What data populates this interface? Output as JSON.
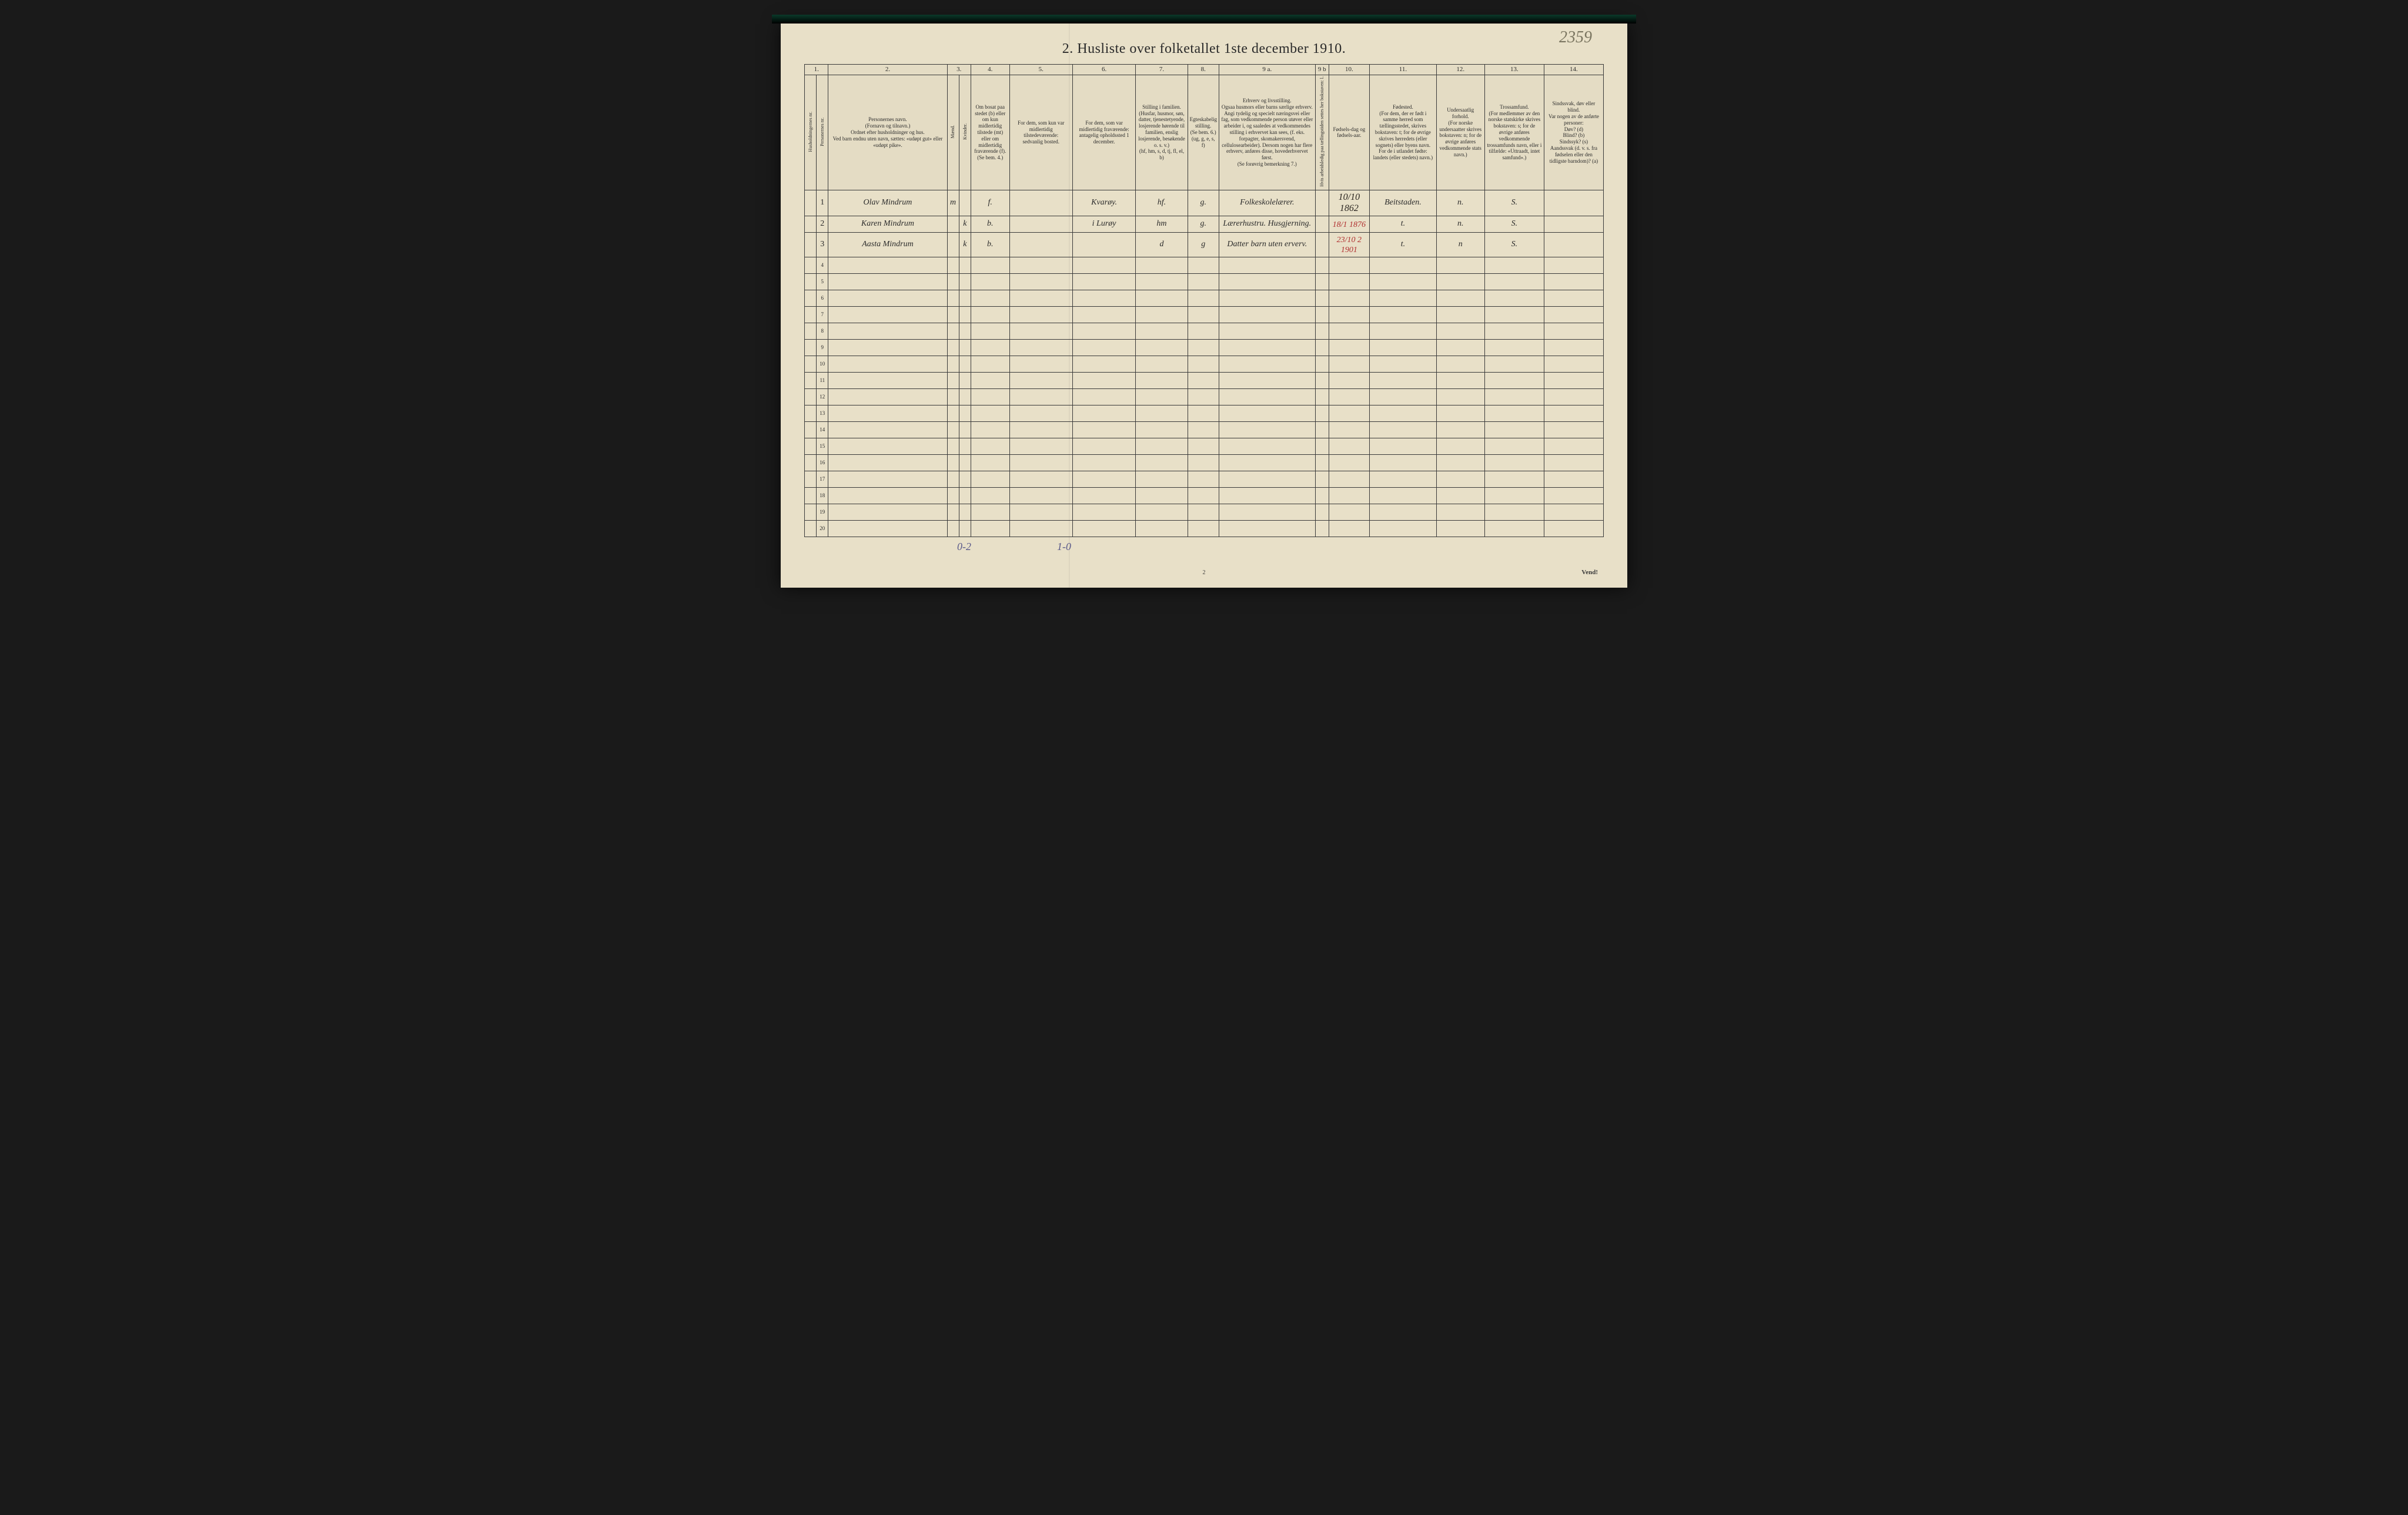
{
  "page_annotation": "2359",
  "title": "2.  Husliste over folketallet 1ste december 1910.",
  "columns": {
    "numbers": [
      "1.",
      "2.",
      "3.",
      "4.",
      "5.",
      "6.",
      "7.",
      "8.",
      "9 a.",
      "9 b",
      "10.",
      "11.",
      "12.",
      "13.",
      "14."
    ],
    "headers": {
      "c1a": "Husholdningernes nr.",
      "c1b": "Personernes nr.",
      "c2": "Personernes navn.\n(Fornavn og tilnavn.)\nOrdnet efter husholdninger og hus.\nVed barn endnu uten navn, sættes: «udøpt gut» eller «udøpt pike».",
      "c3_top": "Kjøn.",
      "c3a": "Mænd.",
      "c3b": "Kvinder.",
      "c3_foot": "m. | k.",
      "c4": "Om bosat paa stedet (b) eller om kun midlertidig tilstede (mt) eller om midlertidig fraværende (f). (Se bem. 4.)",
      "c5": "For dem, som kun var midlertidig tilstedeværende:\nsedvanlig bosted.",
      "c6": "For dem, som var midlertidig fraværende:\nantagelig opholdssted 1 december.",
      "c7": "Stilling i familien.\n(Husfar, husmor, søn, datter, tjenestetyende, losjerende hørende til familien, enslig losjerende, besøkende o. s. v.)\n(hf, hm, s, d, tj, fl, el, b)",
      "c8": "Egteskabelig stilling.\n(Se bem. 6.)\n(ug, g, e, s, f)",
      "c9a": "Erhverv og livsstilling.\nOgsaa husmors eller barns særlige erhverv. Angi tydelig og specielt næringsvei eller fag, som vedkommende person utøver eller arbeider i, og saaledes at vedkommendes stilling i erhvervet kan sees, (f. eks. forpagter, skomakersvend, cellulosearbeider). Dersom nogen har flere erhverv, anføres disse, hovederhvervet først.\n(Se forøvrig bemerkning 7.)",
      "c9b": "Hvis arbeidsledig paa tællingstiden settes her bokstaven: l.",
      "c10": "Fødsels-dag og fødsels-aar.",
      "c11": "Fødested.\n(For dem, der er født i samme herred som tællingsstedet, skrives bokstaven: t; for de øvrige skrives herredets (eller sognets) eller byens navn. For de i utlandet fødte: landets (eller stedets) navn.)",
      "c12": "Undersaatlig forhold.\n(For norske undersaatter skrives bokstaven: n; for de øvrige anføres vedkommende stats navn.)",
      "c13": "Trossamfund.\n(For medlemmer av den norske statskirke skrives bokstaven: s; for de øvrige anføres vedkommende trossamfunds navn, eller i tilfælde: «Uttraadt, intet samfund».)",
      "c14": "Sindssvak, døv eller blind.\nVar nogen av de anførte personer:\nDøv? (d)\nBlind? (b)\nSindssyk? (s)\nAandssvak (d. v. s. fra fødselen eller den tidligste barndom)? (a)"
    }
  },
  "rows": [
    {
      "num": "1",
      "name": "Olav Mindrum",
      "sex": "m",
      "resident": "f.",
      "c6": "Kvarøy.",
      "family": "hf.",
      "marital": "g.",
      "occupation": "Folkeskolelærer.",
      "birth": "10/10 1862",
      "birth_red": "",
      "birthplace": "Beitstaden.",
      "nationality": "n.",
      "faith": "S."
    },
    {
      "num": "2",
      "name": "Karen Mindrum",
      "sex": "k",
      "resident": "b.",
      "c6": "i Lurøy",
      "family": "hm",
      "marital": "g.",
      "occupation": "Lærerhustru. Husgjerning.",
      "birth": "",
      "birth_red": "18/1 1876",
      "birthplace": "t.",
      "nationality": "n.",
      "faith": "S."
    },
    {
      "num": "3",
      "name": "Aasta Mindrum",
      "sex": "k",
      "resident": "b.",
      "c6": "",
      "family": "d",
      "marital": "g",
      "occupation": "Datter barn uten erverv.",
      "birth": "",
      "birth_red": "23/10 2 1901",
      "birthplace": "t.",
      "nationality": "n",
      "faith": "S."
    }
  ],
  "empty_row_count": 17,
  "bottom": {
    "annot1": "0-2",
    "annot2": "1-0",
    "page_foot": "2",
    "vend": "Vend!"
  },
  "colors": {
    "paper": "#e8e0c8",
    "ink": "#2a2520",
    "red_ink": "#b03030",
    "border": "#3a3a3a",
    "background": "#1a1a1a"
  },
  "col_widths_pct": [
    1.6,
    1.6,
    16,
    1.6,
    1.6,
    5.2,
    8.5,
    8.5,
    7,
    4.2,
    13,
    1.8,
    5.5,
    9,
    6.5,
    8,
    8
  ]
}
